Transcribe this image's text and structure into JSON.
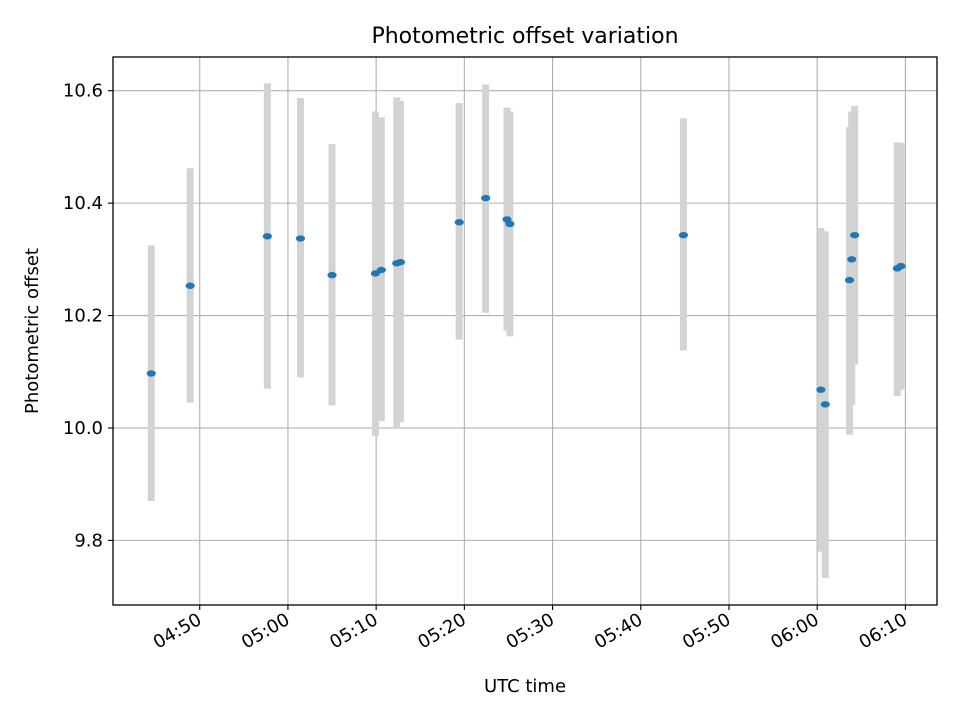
{
  "chart_data": {
    "type": "scatter",
    "title": "Photometric offset variation",
    "xlabel": "UTC time",
    "ylabel": "Photometric offset",
    "grid": true,
    "x_unit": "UTC time (HH:MM:SS)",
    "xlim": [
      "04:40:10",
      "06:13:35"
    ],
    "ylim": [
      9.685,
      10.66
    ],
    "xticks": [
      "04:50",
      "05:00",
      "05:10",
      "05:20",
      "05:30",
      "05:40",
      "05:50",
      "06:00",
      "06:10"
    ],
    "yticks": [
      9.8,
      10.0,
      10.2,
      10.4,
      10.6
    ],
    "ytick_labels": [
      "9.8",
      "10.0",
      "10.2",
      "10.4",
      "10.6"
    ],
    "point_color": "#1f77b4",
    "errorbar_color": "#d3d3d3",
    "series": [
      {
        "points": [
          {
            "x": "04:44:30",
            "y": 10.097,
            "ylow": 9.87,
            "yhigh": 10.325
          },
          {
            "x": "04:48:55",
            "y": 10.253,
            "ylow": 10.045,
            "yhigh": 10.462
          },
          {
            "x": "04:57:40",
            "y": 10.341,
            "ylow": 10.07,
            "yhigh": 10.613
          },
          {
            "x": "05:01:25",
            "y": 10.337,
            "ylow": 10.09,
            "yhigh": 10.587
          },
          {
            "x": "05:05:00",
            "y": 10.272,
            "ylow": 10.04,
            "yhigh": 10.505
          },
          {
            "x": "05:09:55",
            "y": 10.275,
            "ylow": 9.986,
            "yhigh": 10.563
          },
          {
            "x": "05:10:35",
            "y": 10.281,
            "ylow": 10.012,
            "yhigh": 10.553
          },
          {
            "x": "05:12:20",
            "y": 10.293,
            "ylow": 10.0,
            "yhigh": 10.588
          },
          {
            "x": "05:12:45",
            "y": 10.295,
            "ylow": 10.01,
            "yhigh": 10.582
          },
          {
            "x": "05:19:25",
            "y": 10.366,
            "ylow": 10.157,
            "yhigh": 10.578
          },
          {
            "x": "05:22:25",
            "y": 10.409,
            "ylow": 10.205,
            "yhigh": 10.611
          },
          {
            "x": "05:24:50",
            "y": 10.371,
            "ylow": 10.173,
            "yhigh": 10.57
          },
          {
            "x": "05:25:10",
            "y": 10.363,
            "ylow": 10.163,
            "yhigh": 10.563
          },
          {
            "x": "05:44:50",
            "y": 10.343,
            "ylow": 10.138,
            "yhigh": 10.551
          },
          {
            "x": "06:00:25",
            "y": 10.068,
            "ylow": 9.78,
            "yhigh": 10.356
          },
          {
            "x": "06:00:55",
            "y": 10.042,
            "ylow": 9.733,
            "yhigh": 10.35
          },
          {
            "x": "06:03:40",
            "y": 10.263,
            "ylow": 9.988,
            "yhigh": 10.535
          },
          {
            "x": "06:03:55",
            "y": 10.3,
            "ylow": 10.04,
            "yhigh": 10.563
          },
          {
            "x": "06:04:15",
            "y": 10.343,
            "ylow": 10.113,
            "yhigh": 10.573
          },
          {
            "x": "06:09:05",
            "y": 10.284,
            "ylow": 10.057,
            "yhigh": 10.508
          },
          {
            "x": "06:09:30",
            "y": 10.288,
            "ylow": 10.068,
            "yhigh": 10.507
          }
        ]
      }
    ]
  }
}
